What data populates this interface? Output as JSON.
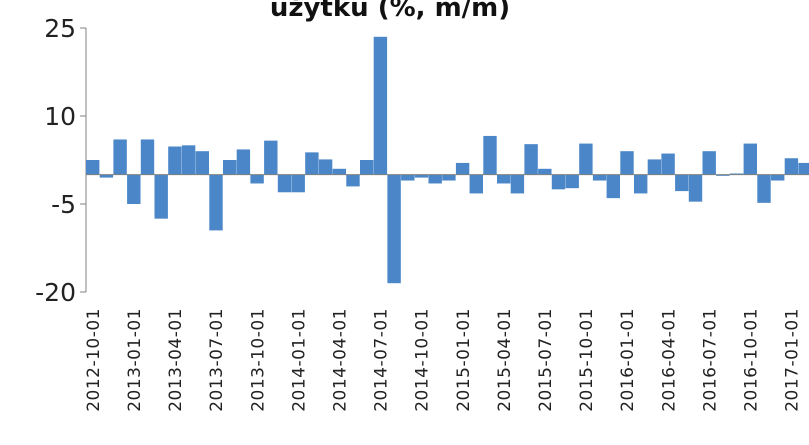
{
  "chart_data": {
    "type": "bar",
    "title": "użytku (%, m/m)",
    "xlabel": "",
    "ylabel": "",
    "ylim": [
      -20,
      25
    ],
    "yticks": [
      25,
      10,
      -5,
      -20
    ],
    "grid": false,
    "legend": "none",
    "bar_color": "#4a86c8",
    "axis_color": "#808080",
    "categories": [
      "2012-10-01",
      "2012-11-01",
      "2012-12-01",
      "2013-01-01",
      "2013-02-01",
      "2013-03-01",
      "2013-04-01",
      "2013-05-01",
      "2013-06-01",
      "2013-07-01",
      "2013-08-01",
      "2013-09-01",
      "2013-10-01",
      "2013-11-01",
      "2013-12-01",
      "2014-01-01",
      "2014-02-01",
      "2014-03-01",
      "2014-04-01",
      "2014-05-01",
      "2014-06-01",
      "2014-07-01",
      "2014-08-01",
      "2014-09-01",
      "2014-10-01",
      "2014-11-01",
      "2014-12-01",
      "2015-01-01",
      "2015-02-01",
      "2015-03-01",
      "2015-04-01",
      "2015-05-01",
      "2015-06-01",
      "2015-07-01",
      "2015-08-01",
      "2015-09-01",
      "2015-10-01",
      "2015-11-01",
      "2015-12-01",
      "2016-01-01",
      "2016-02-01",
      "2016-03-01",
      "2016-04-01",
      "2016-05-01",
      "2016-06-01",
      "2016-07-01",
      "2016-08-01",
      "2016-09-01",
      "2016-10-01",
      "2016-11-01",
      "2016-12-01",
      "2017-01-01",
      "2017-02-01"
    ],
    "tick_labels": [
      "2012-10-01",
      "2013-01-01",
      "2013-04-01",
      "2013-07-01",
      "2013-10-01",
      "2014-01-01",
      "2014-04-01",
      "2014-07-01",
      "2014-10-01",
      "2015-01-01",
      "2015-04-01",
      "2015-07-01",
      "2015-10-01",
      "2016-01-01",
      "2016-04-01",
      "2016-07-01",
      "2016-10-01",
      "2017-01-01"
    ],
    "values": [
      2.5,
      -0.5,
      6.0,
      -5.0,
      6.0,
      -7.5,
      4.8,
      5.0,
      4.0,
      -9.5,
      2.5,
      4.3,
      -1.5,
      5.8,
      -3.0,
      -3.0,
      3.8,
      2.6,
      1.0,
      -2.0,
      2.5,
      23.5,
      -18.5,
      -1.0,
      -0.5,
      -1.5,
      -1.0,
      2.0,
      -3.2,
      6.6,
      -1.5,
      -3.2,
      5.2,
      1.0,
      -2.5,
      -2.3,
      5.3,
      -1.0,
      -4.0,
      4.0,
      -3.2,
      2.6,
      3.6,
      -2.8,
      -4.6,
      4.0,
      -0.2,
      0.2,
      5.3,
      -4.8,
      -1.0,
      2.8,
      2.0
    ]
  }
}
